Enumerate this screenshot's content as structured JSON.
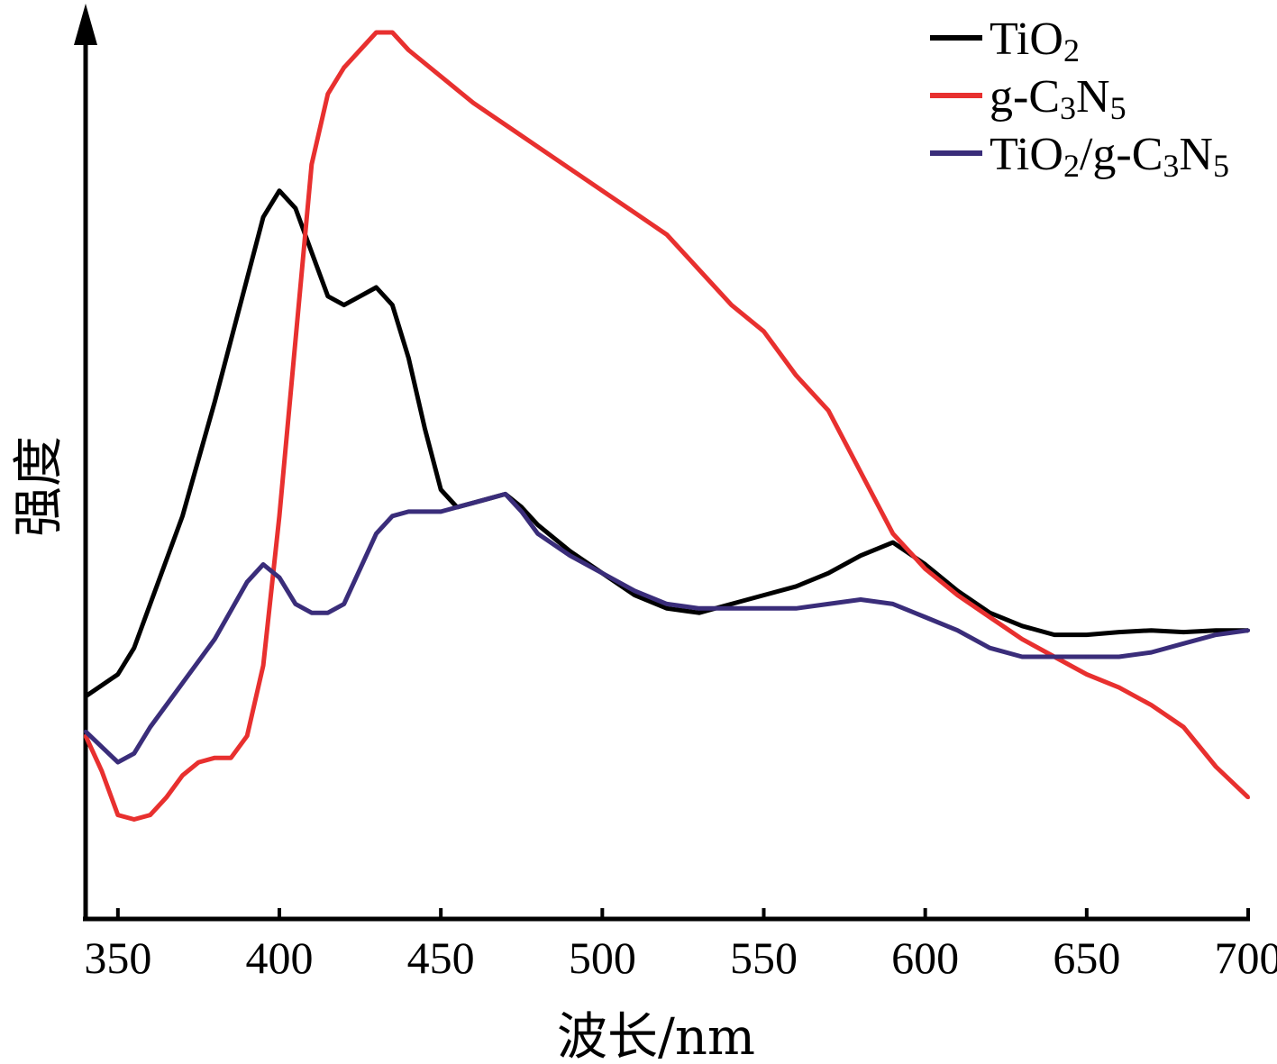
{
  "chart_data": {
    "type": "line",
    "title": "",
    "xlabel": "波长/nm",
    "ylabel": "强度",
    "xlim": [
      340,
      700
    ],
    "ylim": [
      0,
      100
    ],
    "x_ticks": [
      "350",
      "400",
      "450",
      "500",
      "550",
      "600",
      "650",
      "700"
    ],
    "y_ticks": [],
    "grid": false,
    "legend_position": "top-right",
    "series": [
      {
        "name": "TiO2",
        "legend_parts": [
          {
            "t": "TiO"
          },
          {
            "t": "2",
            "sub": true
          }
        ],
        "color": "#000000",
        "points": [
          [
            340,
            24.5
          ],
          [
            350,
            27
          ],
          [
            355,
            30
          ],
          [
            360,
            35
          ],
          [
            370,
            45
          ],
          [
            380,
            58
          ],
          [
            390,
            72
          ],
          [
            395,
            79
          ],
          [
            400,
            82
          ],
          [
            405,
            80
          ],
          [
            410,
            75
          ],
          [
            415,
            70
          ],
          [
            420,
            69
          ],
          [
            425,
            70
          ],
          [
            430,
            71
          ],
          [
            435,
            69
          ],
          [
            440,
            63
          ],
          [
            445,
            55
          ],
          [
            450,
            48
          ],
          [
            455,
            46
          ],
          [
            460,
            46.5
          ],
          [
            465,
            47
          ],
          [
            470,
            47.5
          ],
          [
            475,
            46
          ],
          [
            480,
            44
          ],
          [
            490,
            41
          ],
          [
            500,
            38.5
          ],
          [
            510,
            36
          ],
          [
            520,
            34.5
          ],
          [
            530,
            34
          ],
          [
            540,
            35
          ],
          [
            550,
            36
          ],
          [
            560,
            37
          ],
          [
            570,
            38.5
          ],
          [
            580,
            40.5
          ],
          [
            590,
            42
          ],
          [
            600,
            39.5
          ],
          [
            610,
            36.5
          ],
          [
            620,
            34
          ],
          [
            630,
            32.5
          ],
          [
            640,
            31.5
          ],
          [
            650,
            31.5
          ],
          [
            660,
            31.8
          ],
          [
            670,
            32
          ],
          [
            680,
            31.8
          ],
          [
            690,
            32
          ],
          [
            700,
            32
          ]
        ]
      },
      {
        "name": "g-C3N5",
        "legend_parts": [
          {
            "t": "g-C"
          },
          {
            "t": "3",
            "sub": true
          },
          {
            "t": "N"
          },
          {
            "t": "5",
            "sub": true
          }
        ],
        "color": "#e8302f",
        "points": [
          [
            340,
            20
          ],
          [
            345,
            16
          ],
          [
            350,
            11
          ],
          [
            355,
            10.5
          ],
          [
            360,
            11
          ],
          [
            365,
            13
          ],
          [
            370,
            15.5
          ],
          [
            375,
            17
          ],
          [
            380,
            17.5
          ],
          [
            385,
            17.5
          ],
          [
            390,
            20
          ],
          [
            395,
            28
          ],
          [
            400,
            45
          ],
          [
            405,
            65
          ],
          [
            410,
            85
          ],
          [
            415,
            93
          ],
          [
            420,
            96
          ],
          [
            425,
            98
          ],
          [
            430,
            100
          ],
          [
            435,
            100
          ],
          [
            440,
            98
          ],
          [
            450,
            95
          ],
          [
            460,
            92
          ],
          [
            470,
            89.5
          ],
          [
            480,
            87
          ],
          [
            490,
            84.5
          ],
          [
            500,
            82
          ],
          [
            510,
            79.5
          ],
          [
            520,
            77
          ],
          [
            530,
            73
          ],
          [
            540,
            69
          ],
          [
            550,
            66
          ],
          [
            560,
            61
          ],
          [
            570,
            57
          ],
          [
            580,
            50
          ],
          [
            590,
            43
          ],
          [
            600,
            39
          ],
          [
            610,
            36
          ],
          [
            620,
            33.5
          ],
          [
            630,
            31
          ],
          [
            640,
            29
          ],
          [
            650,
            27
          ],
          [
            660,
            25.5
          ],
          [
            670,
            23.5
          ],
          [
            680,
            21
          ],
          [
            690,
            16.5
          ],
          [
            700,
            13
          ]
        ],
        "_note": "x for g-C3N5 is approximate"
      },
      {
        "name": "TiO2/g-C3N5",
        "legend_parts": [
          {
            "t": "TiO"
          },
          {
            "t": "2",
            "sub": true
          },
          {
            "t": "/g-C"
          },
          {
            "t": "3",
            "sub": true
          },
          {
            "t": "N"
          },
          {
            "t": "5",
            "sub": true
          }
        ],
        "color": "#3a2d7a",
        "points": [
          [
            340,
            20.5
          ],
          [
            350,
            17
          ],
          [
            355,
            18
          ],
          [
            360,
            21
          ],
          [
            370,
            26
          ],
          [
            380,
            31
          ],
          [
            390,
            37.5
          ],
          [
            395,
            39.5
          ],
          [
            400,
            38
          ],
          [
            405,
            35
          ],
          [
            410,
            34
          ],
          [
            415,
            34
          ],
          [
            420,
            35
          ],
          [
            425,
            39
          ],
          [
            430,
            43
          ],
          [
            435,
            45
          ],
          [
            440,
            45.5
          ],
          [
            445,
            45.5
          ],
          [
            450,
            45.5
          ],
          [
            455,
            46
          ],
          [
            460,
            46.5
          ],
          [
            465,
            47
          ],
          [
            470,
            47.5
          ],
          [
            475,
            45.5
          ],
          [
            480,
            43
          ],
          [
            490,
            40.5
          ],
          [
            500,
            38.5
          ],
          [
            510,
            36.5
          ],
          [
            520,
            35
          ],
          [
            530,
            34.5
          ],
          [
            540,
            34.5
          ],
          [
            550,
            34.5
          ],
          [
            560,
            34.5
          ],
          [
            570,
            35
          ],
          [
            580,
            35.5
          ],
          [
            590,
            35
          ],
          [
            600,
            33.5
          ],
          [
            610,
            32
          ],
          [
            620,
            30
          ],
          [
            630,
            29
          ],
          [
            640,
            29
          ],
          [
            650,
            29
          ],
          [
            660,
            29
          ],
          [
            670,
            29.5
          ],
          [
            680,
            30.5
          ],
          [
            690,
            31.5
          ],
          [
            700,
            32
          ]
        ]
      }
    ]
  }
}
